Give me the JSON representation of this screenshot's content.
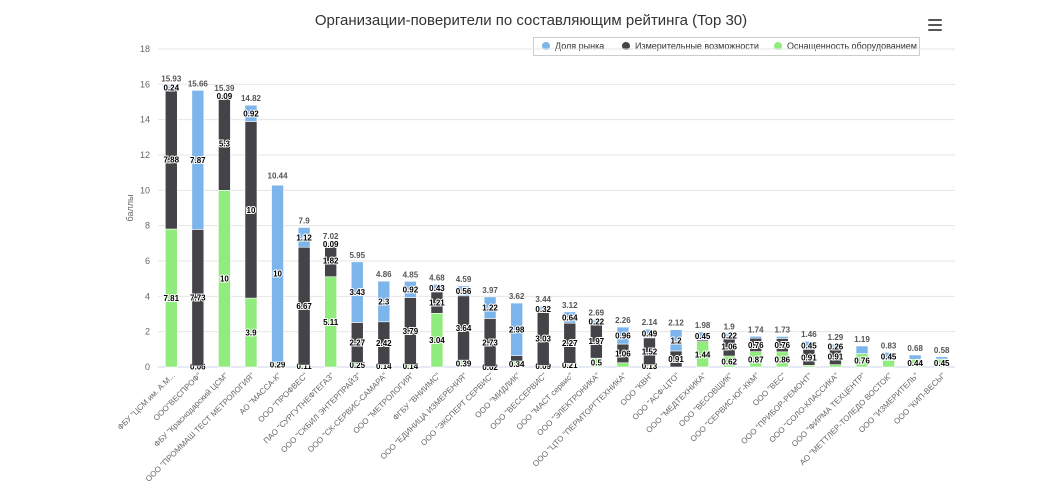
{
  "chart_data": {
    "type": "bar",
    "stacked": true,
    "title": "Организации-поверители по составляющим рейтинга (Top 30)",
    "ylabel": "баллы",
    "ylim": [
      0,
      18
    ],
    "yticks": [
      0,
      2,
      4,
      6,
      8,
      10,
      12,
      14,
      16,
      18
    ],
    "legend_position": "top-right",
    "categories": [
      "ФБУ \"ЦСМ им. А.М...",
      "ООО\"ВЕСПРОФ\"",
      "ФБУ \"Краснодарский ЦСМ\"",
      "ООО \"ПРОММАШ ТЕСТ МЕТРОЛОГИЯ\"",
      "АО \"МАССА-К\"",
      "ООО \"ПРОФВЕС\"",
      "ПАО \"СУРГУТНЕФТЕГАЗ\"",
      "ООО \"СКБИЛ ЭНТЕРПРАЙЗ\"",
      "ООО \"СК-СЕРВИС-САМАРА\"",
      "ООО \"МЕТРОЛОГИЯ\"",
      "ФГБУ \"ВНИИМС\"",
      "ООО \"ЕДИНИЦА ИЗМЕРЕНИЯ\"",
      "ООО \"ЭКСПЕРТ СЕРВИС\"",
      "ООО \"МИДЛИК\"",
      "ООО \"ВЕССЕРВИС\"",
      "ООО \"МАСТ сервис\"",
      "ООО \"ЭЛЕКТРОНИКА\"",
      "ООО \"ЦТО \"ПЕРМТОРГТЕХНИКА\"",
      "ООО \"КВН\"",
      "ООО \"АСФ-ЦТО\"",
      "ООО \"МЕДТЕХНИКА\"",
      "ООО \"ВЕСОВЩИК\"",
      "ООО \"СЕРВИС-ЮГ-ККМ\"",
      "ООО \"ВЕС\"",
      "ООО \"ПРИБОР-РЕМОНТ\"",
      "ООО \"СОЛО-КЛАССИКА\"",
      "ООО \"ФИРМА ТЕХЦЕНТР\"",
      "АО \"МЕТТЛЕР-ТОЛЕДО ВОСТОК\"",
      "ООО \"ИЗМЕРИТЕЛЬ\"",
      "ООО \"КИП-ВЕСЫ\""
    ],
    "totals": [
      15.93,
      15.66,
      15.39,
      14.82,
      10.44,
      7.9,
      7.02,
      5.95,
      4.86,
      4.85,
      4.68,
      4.59,
      3.97,
      3.62,
      3.44,
      3.12,
      2.69,
      2.26,
      2.14,
      2.12,
      1.98,
      1.9,
      1.74,
      1.73,
      1.46,
      1.29,
      1.19,
      0.83,
      0.68,
      0.58
    ],
    "series": [
      {
        "name": "Оснащенность оборудованием",
        "color": "#90ed7d",
        "values": [
          7.81,
          0.06,
          10,
          3.9,
          0.29,
          0.11,
          5.11,
          0.25,
          0.14,
          0.14,
          3.04,
          0.39,
          0.02,
          0.34,
          0.09,
          0.21,
          0.5,
          0.24,
          0.13,
          0,
          1.44,
          0.62,
          0.87,
          0.86,
          0.09,
          0.13,
          0.76,
          0.38,
          0.44,
          0.45
        ]
      },
      {
        "name": "Измерительные возможности",
        "color": "#434348",
        "values": [
          7.88,
          7.73,
          5.3,
          10,
          0,
          6.67,
          1.82,
          2.27,
          2.42,
          3.79,
          1.21,
          3.64,
          2.73,
          0.3,
          3.03,
          2.27,
          1.97,
          1.06,
          1.52,
          0.91,
          0.09,
          1.06,
          0.76,
          0.76,
          0.91,
          0.91,
          0,
          0,
          0,
          0
        ]
      },
      {
        "name": "Доля рынка",
        "color": "#7cb5ec",
        "values": [
          0.24,
          7.87,
          0.09,
          0.92,
          10,
          1.12,
          0.09,
          3.43,
          2.3,
          0.92,
          0.43,
          0.56,
          1.22,
          2.98,
          0.32,
          0.64,
          0.22,
          0.96,
          0.49,
          1.2,
          0.45,
          0.22,
          0.11,
          0.11,
          0.45,
          0.26,
          0.43,
          0.45,
          0.24,
          0.13
        ]
      }
    ],
    "legend": [
      {
        "name": "Доля рынка",
        "color": "#7cb5ec"
      },
      {
        "name": "Измерительные возможности",
        "color": "#434348"
      },
      {
        "name": "Оснащенность оборудованием",
        "color": "#90ed7d"
      }
    ],
    "segment_labels": [
      [
        "7.81",
        "7.88",
        "0.24"
      ],
      [
        "0.06",
        "7.73",
        "7.87"
      ],
      [
        "10",
        "5.3",
        "0.09"
      ],
      [
        "3.9",
        "10",
        "0.92"
      ],
      [
        "0.29",
        "",
        "10"
      ],
      [
        "0.11",
        "6.67",
        "1.12"
      ],
      [
        "5.11",
        "1.82",
        "0.09"
      ],
      [
        "0.25",
        "2.27",
        "3.43"
      ],
      [
        "0.14",
        "2.42",
        "2.3"
      ],
      [
        "0.14",
        "3.79",
        "0.92"
      ],
      [
        "3.04",
        "1.21",
        "0.43"
      ],
      [
        "0.39",
        "3.64",
        "0.56"
      ],
      [
        "0.02",
        "2.73",
        "1.22"
      ],
      [
        "0.34",
        "",
        "2.98"
      ],
      [
        "0.09",
        "3.03",
        "0.32"
      ],
      [
        "0.21",
        "2.27",
        "0.64"
      ],
      [
        "0.5",
        "1.97",
        "0.22"
      ],
      [
        "",
        "1.06",
        "0.96"
      ],
      [
        "0.13",
        "1.52",
        "0.49"
      ],
      [
        "",
        "0.91",
        "1.2"
      ],
      [
        "1.44",
        "",
        "0.45"
      ],
      [
        "0.62",
        "1.06",
        "0.22"
      ],
      [
        "0.87",
        "0.76",
        ""
      ],
      [
        "0.86",
        "0.76",
        ""
      ],
      [
        "",
        "0.91",
        "0.45"
      ],
      [
        "",
        "0.91",
        "0.26"
      ],
      [
        "0.76",
        "",
        ""
      ],
      [
        "",
        "",
        "0.45"
      ],
      [
        "0.44",
        "",
        ""
      ],
      [
        "0.45",
        "",
        ""
      ]
    ],
    "total_labels": [
      "15.93",
      "15.66",
      "15.39",
      "14.82",
      "10.44",
      "7.9",
      "7.02",
      "5.95",
      "4.86",
      "4.85",
      "4.68",
      "4.59",
      "3.97",
      "3.62",
      "3.44",
      "3.12",
      "2.69",
      "2.26",
      "2.14",
      "2.12",
      "1.98",
      "1.9",
      "1.74",
      "1.73",
      "1.46",
      "1.29",
      "1.19",
      "0.83",
      "0.68",
      "0.58"
    ]
  },
  "ui": {
    "menu_icon": "hamburger-menu-icon"
  }
}
